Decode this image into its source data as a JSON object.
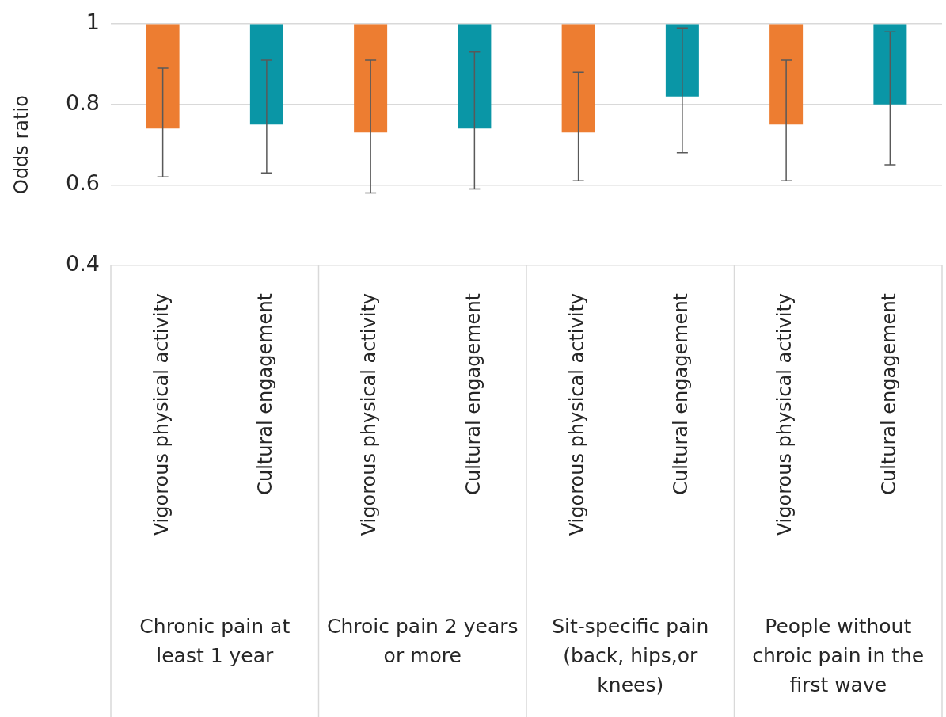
{
  "chart_data": {
    "type": "bar",
    "ylabel": "Odds ratio",
    "categories": [
      "Vigorous physical activity",
      "Cultural engagement",
      "Vigorous physical activity",
      "Cultural engagement",
      "Vigorous physical activity",
      "Cultural engagement",
      "Vigorous physical activity",
      "Cultural engagement"
    ],
    "base": [
      1,
      1,
      1,
      1,
      1,
      1,
      1,
      1
    ],
    "values": [
      -0.26,
      -0.25,
      -0.27,
      -0.26,
      -0.27,
      -0.18,
      -0.25,
      -0.2
    ],
    "colors": [
      "#ed7d31",
      "#0a96a6",
      "#ed7d31",
      "#0a96a6",
      "#ed7d31",
      "#0a96a6",
      "#ed7d31",
      "#0a96a6"
    ],
    "errors": [
      [
        0.62,
        0.89
      ],
      [
        0.63,
        0.91
      ],
      [
        0.58,
        0.91
      ],
      [
        0.59,
        0.93
      ],
      [
        0.61,
        0.88
      ],
      [
        0.68,
        0.99
      ],
      [
        0.61,
        0.91
      ],
      [
        0.65,
        0.98
      ]
    ],
    "ylim": [
      0.4,
      1
    ],
    "yticks": [
      0.4,
      0.6,
      0.8,
      1
    ],
    "grid": "y",
    "legend": false,
    "annotations": [
      "Chronic pain at least 1 year",
      "Chroic pain 2 years or more",
      "Sit-specific pain (back, hips,or knees)",
      "People without chroic pain in the first wave"
    ]
  }
}
